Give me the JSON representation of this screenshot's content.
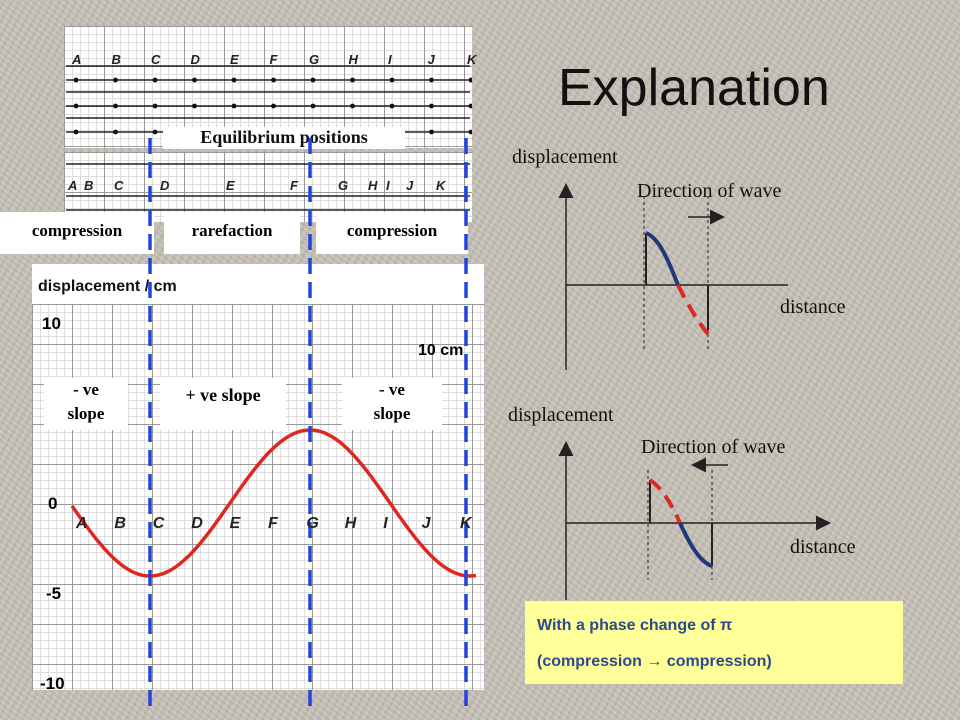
{
  "title": "Explanation",
  "left_panel": {
    "particle_letters": [
      "A",
      "B",
      "C",
      "D",
      "E",
      "F",
      "G",
      "H",
      "I",
      "J",
      "K"
    ],
    "equilibrium_label": "Equilibrium positions",
    "regions": [
      "compression",
      "rarefaction",
      "compression"
    ],
    "graph_ylabel": "displacement / cm",
    "y_ticks": [
      "10",
      "0",
      "-5",
      "-10"
    ],
    "wavelength_label": "10 cm",
    "slopes": {
      "left_line1": "- ve",
      "left_line2": "slope",
      "middle": "+ ve slope",
      "right_line1": "- ve",
      "right_line2": "slope"
    }
  },
  "diagram_top": {
    "y_label": "displacement",
    "direction_label": "Direction of wave",
    "x_label": "distance",
    "arrow": "right"
  },
  "diagram_bottom": {
    "y_label": "displacement",
    "direction_label": "Direction of wave",
    "x_label": "distance",
    "arrow": "left"
  },
  "phase_note": {
    "line1": "With a phase change of π",
    "line2": "(compression → compression)"
  },
  "colors": {
    "wave": "#e0271f",
    "dashed": "#2244dd",
    "navy": "#1f3a7a",
    "note_bg": "#ffff99",
    "note_text": "#2b4a8b"
  }
}
